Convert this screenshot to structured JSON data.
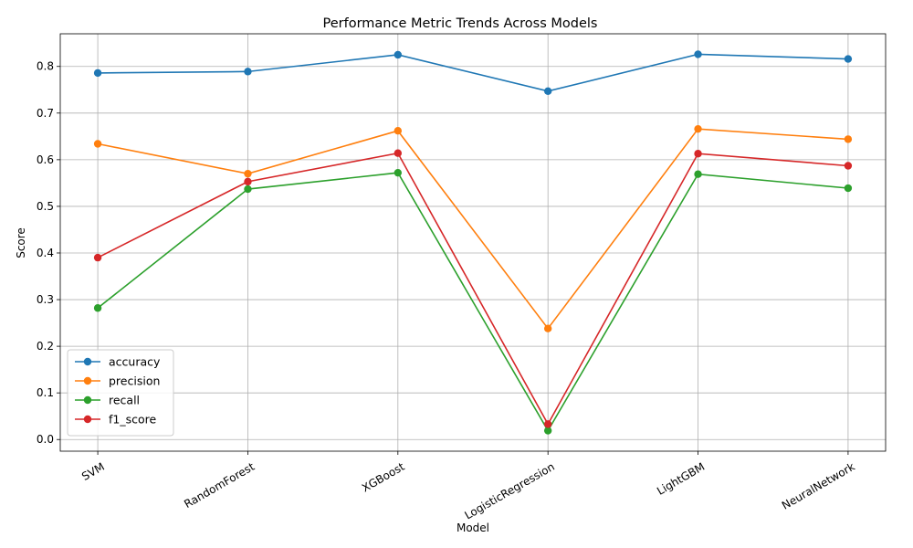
{
  "chart_data": {
    "type": "line",
    "title": "Performance Metric Trends Across Models",
    "xlabel": "Model",
    "ylabel": "Score",
    "categories": [
      "SVM",
      "RandomForest",
      "XGBoost",
      "LogisticRegression",
      "LightGBM",
      "NeuralNetwork"
    ],
    "ylim": [
      -0.025,
      0.87
    ],
    "yticks": [
      0.0,
      0.1,
      0.2,
      0.3,
      0.4,
      0.5,
      0.6,
      0.7,
      0.8
    ],
    "ytick_labels": [
      "0.0",
      "0.1",
      "0.2",
      "0.3",
      "0.4",
      "0.5",
      "0.6",
      "0.7",
      "0.8"
    ],
    "grid": true,
    "legend_position": "lower-left",
    "series": [
      {
        "name": "accuracy",
        "color": "#1f77b4",
        "values": [
          0.786,
          0.789,
          0.825,
          0.747,
          0.826,
          0.816
        ]
      },
      {
        "name": "precision",
        "color": "#ff7f0e",
        "values": [
          0.634,
          0.57,
          0.662,
          0.238,
          0.666,
          0.644
        ]
      },
      {
        "name": "recall",
        "color": "#2ca02c",
        "values": [
          0.282,
          0.537,
          0.572,
          0.019,
          0.569,
          0.539
        ]
      },
      {
        "name": "f1_score",
        "color": "#d62728",
        "values": [
          0.39,
          0.553,
          0.614,
          0.033,
          0.613,
          0.587
        ]
      }
    ]
  }
}
